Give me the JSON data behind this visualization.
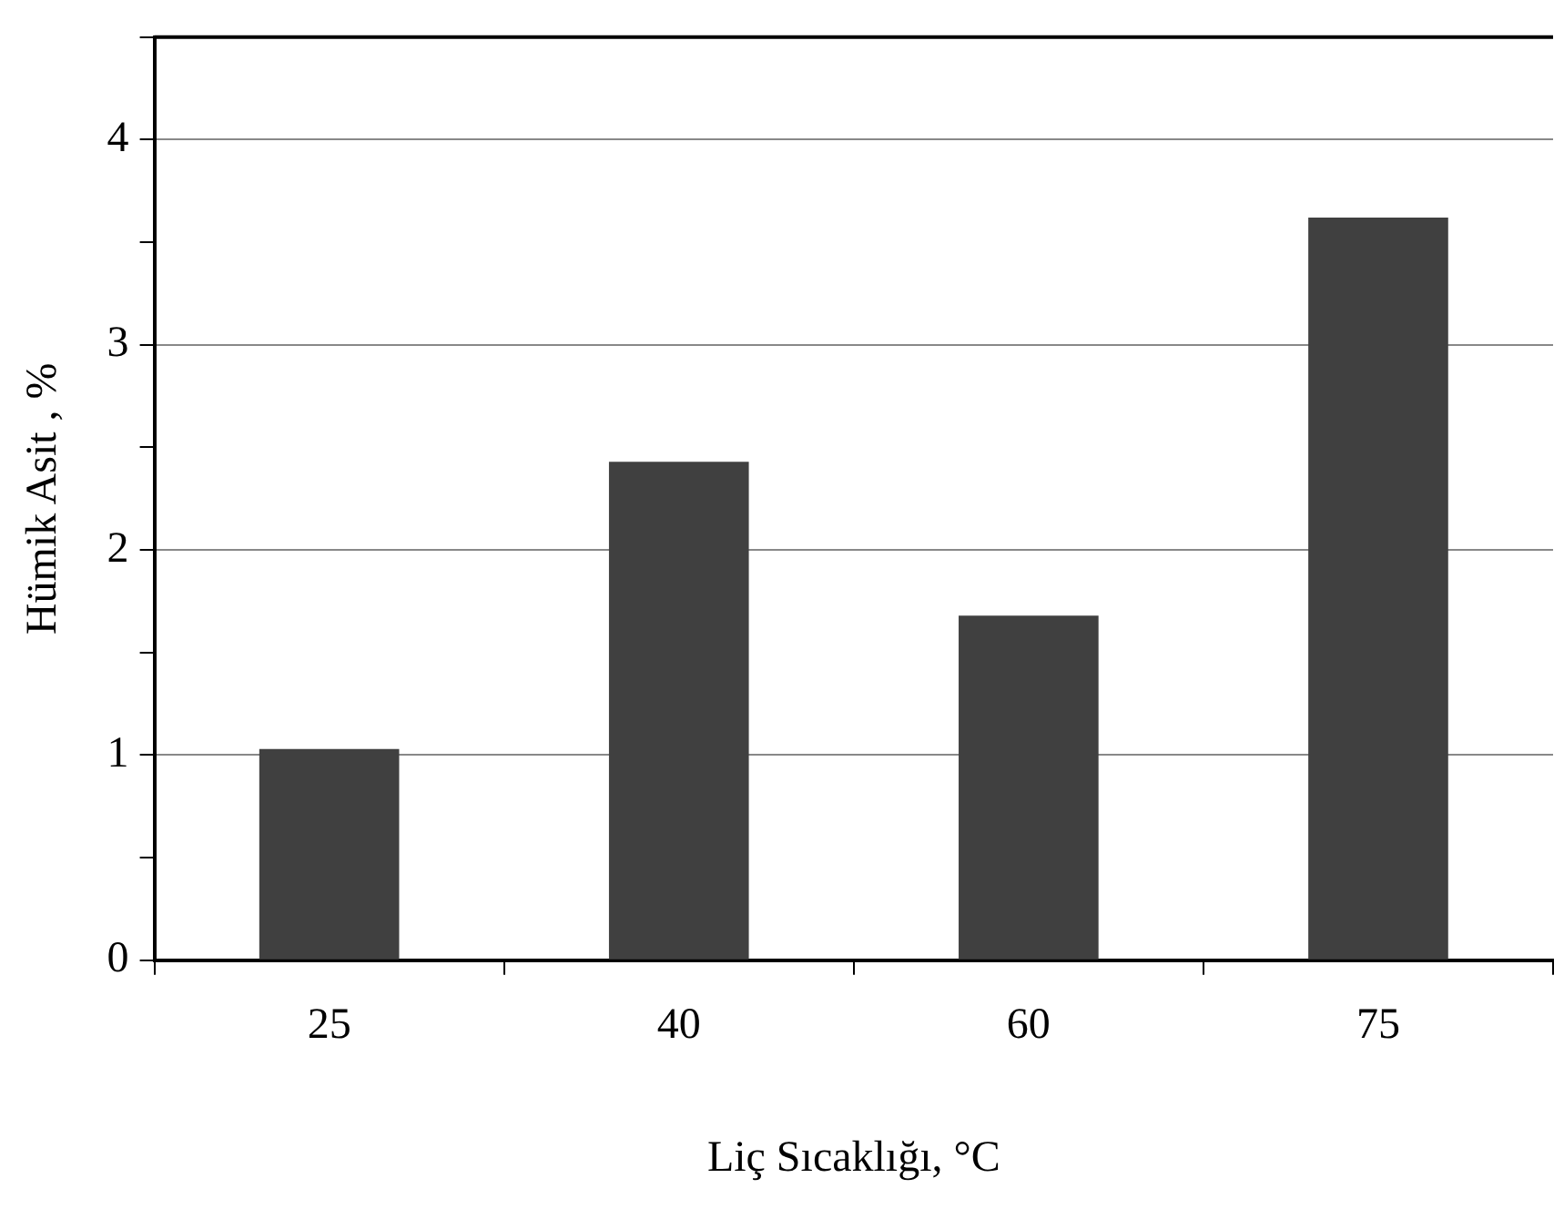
{
  "chart_data": {
    "type": "bar",
    "xlabel": "Liç Sıcaklığı, °C",
    "ylabel": "Hümik Asit , %",
    "categories": [
      "25",
      "40",
      "60",
      "75"
    ],
    "values": [
      1.03,
      2.43,
      1.68,
      3.62
    ],
    "color": "#404040",
    "ylim": [
      0,
      4.5
    ],
    "yticks": [
      0,
      {
        "value": 0.5,
        "label": null
      },
      1,
      {
        "value": 1.5,
        "label": null
      },
      2,
      {
        "value": 2.5,
        "label": null
      },
      3,
      {
        "value": 3.5,
        "label": null
      },
      4,
      {
        "value": 4.5,
        "label": null
      }
    ],
    "grid": "y"
  }
}
